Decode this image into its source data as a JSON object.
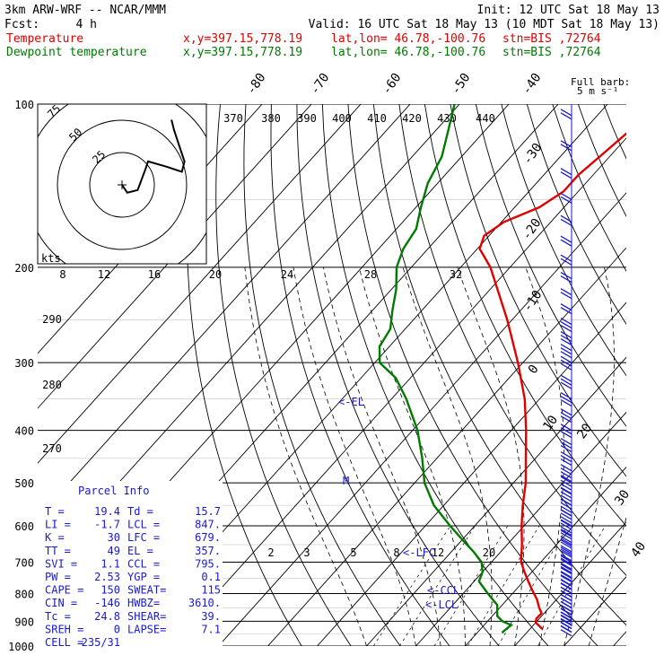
{
  "header": {
    "title": "3km ARW-WRF -- NCAR/MMM",
    "init": "Init: 12 UTC Sat 18 May 13",
    "fcst_label": "Fcst:",
    "fcst_value": "4 h",
    "valid": "Valid: 16 UTC Sat 18 May 13 (10 MDT Sat 18 May 13)",
    "temp_label": "Temperature",
    "temp_xy": "x,y=397.15,778.19",
    "temp_latlon": "lat,lon= 46.78,-100.76",
    "temp_stn": "stn=BIS ,72764",
    "dew_label": "Dewpoint temperature",
    "dew_xy": "x,y=397.15,778.19",
    "dew_latlon": "lat,lon= 46.78,-100.76",
    "dew_stn": "stn=BIS ,72764"
  },
  "colors": {
    "temperature": "#e00000",
    "dewpoint": "#007a00",
    "info": "#1a1ad0",
    "grid": "#000000"
  },
  "barb_legend": {
    "title": "Full barb:",
    "value": "5 m s⁻¹"
  },
  "parcel_info": {
    "title": "Parcel Info",
    "rows": [
      [
        "T  =",
        "19.4",
        "Td =",
        "15.7"
      ],
      [
        "LI =",
        "-1.7",
        "LCL =",
        "847."
      ],
      [
        "K  =",
        "30",
        "LFC =",
        "679."
      ],
      [
        "TT =",
        "49",
        "EL  =",
        "357."
      ],
      [
        "SVI =",
        "1.1",
        "CCL =",
        "795."
      ],
      [
        "PW =",
        "2.53",
        "YGP =",
        "0.1"
      ],
      [
        "CAPE =",
        "150",
        "SWEAT=",
        "115"
      ],
      [
        "CIN =",
        "-146",
        "HWBZ=",
        "3610."
      ],
      [
        "Tc =",
        "24.8",
        "SHEAR=",
        "39."
      ],
      [
        "SREH =",
        "0",
        "LAPSE=",
        "7.1"
      ],
      [
        "CELL =",
        "235/31",
        "",
        ""
      ]
    ]
  },
  "hodograph": {
    "ring_labels": [
      "75",
      "50",
      "25"
    ],
    "units_label": "kts",
    "points": [
      [
        0,
        0
      ],
      [
        2,
        -3
      ],
      [
        6,
        -2
      ],
      [
        9,
        6
      ],
      [
        10,
        9
      ],
      [
        17,
        7
      ],
      [
        23,
        5
      ],
      [
        24,
        9
      ],
      [
        20,
        21
      ],
      [
        19,
        25
      ]
    ]
  },
  "chart_data": {
    "type": "skew-t",
    "pressure_axis": {
      "label_levels": [
        "100",
        "200",
        "300",
        "400",
        "500",
        "600",
        "700",
        "800",
        "900",
        "1000"
      ],
      "range_hpa": [
        100,
        1000
      ]
    },
    "skewed_temp_labels": [
      "-80",
      "-70",
      "-60",
      "-50",
      "-40",
      "-30",
      "-20",
      "-10",
      "0",
      "10",
      "20",
      "30",
      "40"
    ],
    "theta_labels": [
      "370",
      "380",
      "390",
      "400",
      "410",
      "420",
      "430",
      "440"
    ],
    "theta_labels_lower": [
      "290",
      "280",
      "270"
    ],
    "mixing_ratio_labels_upper": [
      "8",
      "12",
      "16",
      "20",
      "24",
      "28",
      "32"
    ],
    "mixing_ratio_labels_lower": [
      "2",
      "3",
      "5",
      "8",
      "12",
      "20"
    ],
    "level_markers": [
      "<-EL",
      "M",
      "<-LFC",
      "<-CCL",
      "<-LCL"
    ],
    "temperature": {
      "name": "Temperature",
      "p": [
        930,
        905,
        890,
        870,
        850,
        820,
        790,
        760,
        730,
        700,
        650,
        600,
        550,
        500,
        450,
        400,
        350,
        300,
        250,
        200,
        185,
        175,
        165,
        155,
        145,
        135,
        125,
        115,
        105
      ],
      "t": [
        22.5,
        20.0,
        19.4,
        19.5,
        18.0,
        16.0,
        13.5,
        11.0,
        8.5,
        6.0,
        3.0,
        -0.5,
        -4.0,
        -7.5,
        -12.0,
        -17.0,
        -23.0,
        -31.0,
        -41.0,
        -54.0,
        -59.5,
        -61.0,
        -59.5,
        -55.0,
        -53.0,
        -53.0,
        -52.0,
        -51.0,
        -50.0
      ]
    },
    "dewpoint": {
      "name": "Dewpoint temperature",
      "p": [
        945,
        930,
        915,
        900,
        880,
        860,
        840,
        800,
        760,
        730,
        700,
        670,
        640,
        600,
        550,
        500,
        450,
        400,
        350,
        320,
        300,
        280,
        260,
        240,
        220,
        200,
        185,
        170,
        155,
        140,
        125,
        110,
        100
      ],
      "td": [
        15.0,
        15.2,
        15.5,
        13.0,
        11.0,
        10.0,
        9.0,
        5.0,
        1.0,
        0.0,
        -2.0,
        -5.5,
        -9.5,
        -15.0,
        -22.0,
        -28.0,
        -33.0,
        -39.0,
        -47.0,
        -53.0,
        -59.0,
        -62.0,
        -63.0,
        -66.0,
        -69.0,
        -73.0,
        -75.0,
        -76.0,
        -79.0,
        -82.0,
        -84.0,
        -88.0,
        -91.0
      ]
    },
    "wind_levels_hpa": [
      105,
      120,
      135,
      150,
      165,
      180,
      195,
      210,
      225,
      240,
      255,
      270,
      285,
      300,
      325,
      350,
      375,
      400,
      425,
      450,
      475,
      500,
      525,
      550,
      575,
      600,
      625,
      650,
      675,
      700,
      725,
      750,
      775,
      800,
      825,
      850,
      875,
      900,
      915
    ]
  }
}
